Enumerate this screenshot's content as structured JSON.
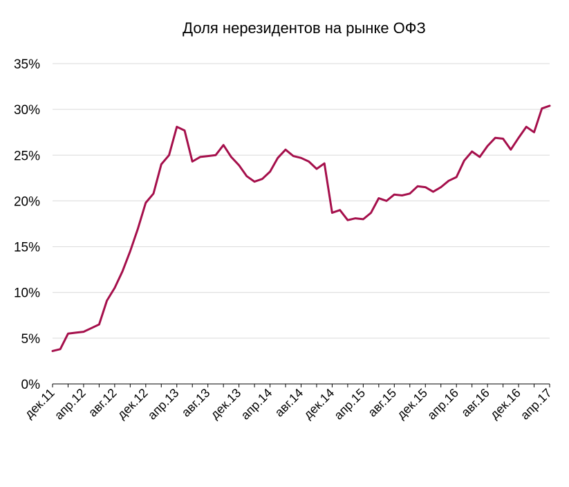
{
  "colors": {
    "line": "#A50F4B",
    "grid": "#D9D9D9",
    "axis": "#000000",
    "background": "#FFFFFF"
  },
  "chart_data": {
    "type": "line",
    "title": "Доля нерезидентов на рынке ОФЗ",
    "xlabel": "",
    "ylabel": "",
    "grid": true,
    "legend": "none",
    "y_unit": "%",
    "ylim": [
      0,
      35
    ],
    "yticks": [
      0,
      5,
      10,
      15,
      20,
      25,
      30,
      35
    ],
    "ytick_labels": [
      "0%",
      "5%",
      "10%",
      "15%",
      "20%",
      "25%",
      "30%",
      "35%"
    ],
    "x": [
      "дек.11",
      "янв.12",
      "фев.12",
      "мар.12",
      "апр.12",
      "май.12",
      "июн.12",
      "июл.12",
      "авг.12",
      "сен.12",
      "окт.12",
      "ноя.12",
      "дек.12",
      "янв.13",
      "фев.13",
      "мар.13",
      "апр.13",
      "май.13",
      "июн.13",
      "июл.13",
      "авг.13",
      "сен.13",
      "окт.13",
      "ноя.13",
      "дек.13",
      "янв.14",
      "фев.14",
      "мар.14",
      "апр.14",
      "май.14",
      "июн.14",
      "июл.14",
      "авг.14",
      "сен.14",
      "окт.14",
      "ноя.14",
      "дек.14",
      "янв.15",
      "фев.15",
      "мар.15",
      "апр.15",
      "май.15",
      "июн.15",
      "июл.15",
      "авг.15",
      "сен.15",
      "окт.15",
      "ноя.15",
      "дек.15",
      "янв.16",
      "фев.16",
      "мар.16",
      "апр.16",
      "май.16",
      "июн.16",
      "июл.16",
      "авг.16",
      "сен.16",
      "окт.16",
      "ноя.16",
      "дек.16",
      "янв.17",
      "фев.17",
      "мар.17",
      "апр.17"
    ],
    "xtick_labels": [
      "дек.11",
      "апр.12",
      "авг.12",
      "дек.12",
      "апр.13",
      "авг.13",
      "дек.13",
      "апр.14",
      "авг.14",
      "дек.14",
      "апр.15",
      "авг.15",
      "дек.15",
      "апр.16",
      "авг.16",
      "дек.16",
      "апр.17"
    ],
    "series": [
      {
        "values": [
          3.6,
          3.8,
          5.5,
          5.6,
          5.7,
          6.1,
          6.5,
          9.1,
          10.5,
          12.3,
          14.5,
          17.0,
          19.8,
          20.8,
          24.0,
          25.0,
          28.1,
          27.7,
          24.3,
          24.8,
          24.9,
          25.0,
          26.1,
          24.8,
          23.9,
          22.7,
          22.1,
          22.4,
          23.2,
          24.7,
          25.6,
          24.9,
          24.7,
          24.3,
          23.5,
          24.1,
          18.7,
          19.0,
          17.9,
          18.1,
          18.0,
          18.7,
          20.3,
          20.0,
          20.7,
          20.6,
          20.8,
          21.6,
          21.5,
          21.0,
          21.5,
          22.2,
          22.6,
          24.4,
          25.4,
          24.8,
          26.0,
          26.9,
          26.8,
          25.6,
          26.9,
          28.1,
          27.5,
          30.1,
          30.4
        ]
      }
    ]
  }
}
